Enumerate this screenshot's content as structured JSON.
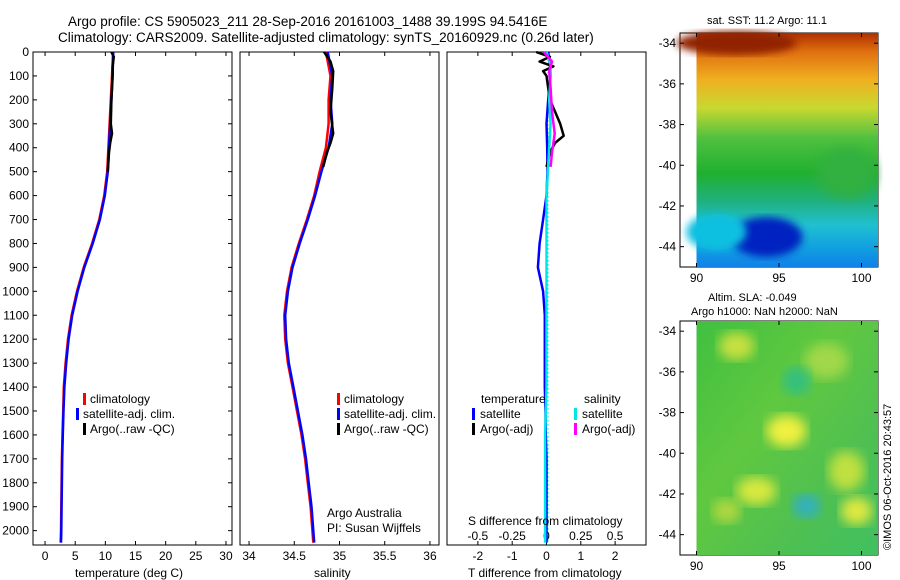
{
  "header": {
    "title_line1": "Argo profile: CS 5905023_211 28-Sep-2016 20161003_1488 39.199S 94.5416E",
    "title_line2": "Climatology: CARS2009. Satellite-adjusted climatology: synTS_20160929.nc (0.26d later)"
  },
  "credits": {
    "argo_australia": "Argo Australia",
    "pi": "PI: Susan Wijffels",
    "imos": "©IMOS 06-Oct-2016 20:43:57"
  },
  "colors": {
    "climatology": "#ff0000",
    "satellite": "#0000ff",
    "argo": "#000000",
    "salinity_satellite": "#00e5e5",
    "salinity_argo": "#ff00ff"
  },
  "depth_ticks": [
    "0",
    "100",
    "200",
    "300",
    "400",
    "500",
    "600",
    "700",
    "800",
    "900",
    "1000",
    "1100",
    "1200",
    "1300",
    "1400",
    "1500",
    "1600",
    "1700",
    "1800",
    "1900",
    "2000"
  ],
  "chart_data": [
    {
      "type": "line",
      "id": "temperature",
      "xlabel": "temperature (deg C)",
      "xlim": [
        -2,
        31
      ],
      "xticks": [
        0,
        5,
        10,
        15,
        20,
        25,
        30
      ],
      "ylim": [
        0,
        2060
      ],
      "y_inverted": true,
      "legend": [
        "climatology",
        "satellite-adj. clim.",
        "Argo(..raw -QC)"
      ],
      "legend_position": "lower-right",
      "series": [
        {
          "name": "climatology",
          "depth": [
            0,
            100,
            200,
            300,
            400,
            500,
            600,
            700,
            800,
            900,
            1000,
            1100,
            1200,
            1300,
            1400,
            1500,
            1600,
            1700,
            1800,
            1900,
            2000,
            2050
          ],
          "values": [
            11.3,
            11.1,
            10.9,
            10.7,
            10.5,
            10.3,
            9.8,
            9.0,
            7.8,
            6.4,
            5.3,
            4.4,
            3.8,
            3.4,
            3.1,
            3.0,
            2.9,
            2.8,
            2.75,
            2.7,
            2.65,
            2.6
          ]
        },
        {
          "name": "satellite-adj. clim.",
          "depth": [
            0,
            100,
            200,
            300,
            400,
            500,
            600,
            700,
            800,
            900,
            1000,
            1100,
            1200,
            1300,
            1400,
            1500,
            1600,
            1700,
            1800,
            1900,
            2000,
            2050
          ],
          "values": [
            11.3,
            11.2,
            11.0,
            10.8,
            10.6,
            10.4,
            9.9,
            9.1,
            7.9,
            6.5,
            5.4,
            4.5,
            3.9,
            3.5,
            3.2,
            3.05,
            2.95,
            2.85,
            2.8,
            2.75,
            2.7,
            2.65
          ]
        },
        {
          "name": "Argo(..raw -QC)",
          "depth": [
            0,
            20,
            60,
            100,
            200,
            300,
            340,
            380,
            420,
            500
          ],
          "values": [
            11.0,
            11.4,
            11.2,
            11.2,
            11.0,
            10.9,
            11.1,
            10.8,
            10.6,
            10.4
          ]
        }
      ]
    },
    {
      "type": "line",
      "id": "salinity",
      "xlabel": "salinity",
      "xlim": [
        33.9,
        36.1
      ],
      "xticks": [
        34,
        34.5,
        35,
        35.5,
        36
      ],
      "ylim": [
        0,
        2060
      ],
      "y_inverted": true,
      "legend": [
        "climatology",
        "satellite-adj. clim.",
        "Argo(..raw -QC)"
      ],
      "legend_position": "lower-right",
      "series": [
        {
          "name": "climatology",
          "depth": [
            0,
            100,
            200,
            300,
            400,
            500,
            600,
            700,
            800,
            900,
            1000,
            1100,
            1200,
            1300,
            1400,
            1500,
            1600,
            1700,
            1800,
            1900,
            2000,
            2050
          ],
          "values": [
            34.85,
            34.9,
            34.88,
            34.88,
            34.85,
            34.78,
            34.72,
            34.64,
            34.55,
            34.47,
            34.42,
            34.39,
            34.4,
            34.43,
            34.48,
            34.53,
            34.58,
            34.62,
            34.65,
            34.68,
            34.7,
            34.71
          ]
        },
        {
          "name": "satellite-adj. clim.",
          "depth": [
            0,
            100,
            200,
            300,
            400,
            500,
            600,
            700,
            800,
            900,
            1000,
            1100,
            1200,
            1300,
            1400,
            1500,
            1600,
            1700,
            1800,
            1900,
            2000,
            2050
          ],
          "values": [
            34.87,
            34.92,
            34.9,
            34.92,
            34.88,
            34.8,
            34.73,
            34.65,
            34.56,
            34.48,
            34.43,
            34.4,
            34.41,
            34.44,
            34.49,
            34.54,
            34.59,
            34.63,
            34.66,
            34.69,
            34.71,
            34.72
          ]
        },
        {
          "name": "Argo(..raw -QC)",
          "depth": [
            0,
            40,
            80,
            150,
            250,
            340,
            380,
            420,
            480
          ],
          "values": [
            34.83,
            34.9,
            34.93,
            34.92,
            34.9,
            34.93,
            34.9,
            34.86,
            34.82
          ]
        }
      ]
    },
    {
      "type": "line",
      "id": "difference",
      "xlabel_top": "S difference from climatology",
      "xlabel": "T difference from climatology",
      "xlim": [
        -2.9,
        2.9
      ],
      "xticks": [
        -2,
        -1,
        0,
        1,
        2
      ],
      "xticks_salinity": [
        "-0.5",
        "-0.25",
        "0",
        "0.25",
        "0.5"
      ],
      "xticks_salinity_values": [
        -0.5,
        -0.25,
        0,
        0.25,
        0.5
      ],
      "ylim": [
        0,
        2060
      ],
      "y_inverted": true,
      "legend_titles": [
        "temperature",
        "salinity"
      ],
      "legend": [
        "satellite",
        "Argo(-adj)",
        "satellite",
        "Argo(-adj)"
      ],
      "series": [
        {
          "name": "temperature satellite",
          "depth": [
            0,
            50,
            100,
            200,
            300,
            400,
            500,
            600,
            700,
            800,
            900,
            1000,
            1100,
            1200,
            1300,
            1400,
            1500,
            1600,
            1700,
            1800,
            1900,
            2000,
            2050
          ],
          "values": [
            0.05,
            0.1,
            0.12,
            0.05,
            0.0,
            0.02,
            0.03,
            0.0,
            -0.1,
            -0.2,
            -0.25,
            -0.1,
            -0.05,
            -0.05,
            -0.05,
            -0.05,
            -0.03,
            -0.02,
            0.0,
            0.0,
            0.0,
            0.0,
            0.0
          ]
        },
        {
          "name": "temperature Argo(-adj)",
          "depth": [
            0,
            20,
            40,
            60,
            80,
            100,
            150,
            200,
            250,
            300,
            350,
            380,
            420,
            480
          ],
          "values": [
            -0.3,
            0.1,
            -0.2,
            0.2,
            -0.1,
            0.0,
            0.05,
            0.1,
            0.25,
            0.4,
            0.5,
            0.25,
            0.1,
            0.0
          ]
        },
        {
          "name": "salinity satellite",
          "depth": [
            0,
            50,
            100,
            200,
            300,
            400,
            500,
            600,
            800,
            1000,
            1200,
            1400,
            1600,
            1800,
            2000,
            2050
          ],
          "values": [
            0.0,
            0.03,
            0.03,
            0.02,
            0.03,
            0.02,
            0.01,
            0.0,
            0.0,
            0.0,
            0.0,
            0.0,
            -0.01,
            -0.01,
            -0.01,
            -0.01
          ]
        },
        {
          "name": "salinity Argo(-adj)",
          "depth": [
            0,
            40,
            80,
            150,
            250,
            340,
            380,
            420,
            480
          ],
          "values": [
            -0.02,
            0.04,
            0.02,
            0.03,
            0.04,
            0.06,
            0.05,
            0.04,
            0.03
          ]
        }
      ]
    },
    {
      "type": "heatmap",
      "id": "sst_map",
      "title": "sat. SST: 11.2 Argo: 11.1",
      "xlim": [
        89,
        101
      ],
      "ylim": [
        -45,
        -33.5
      ],
      "xticks": [
        90,
        95,
        100
      ],
      "yticks": [
        -34,
        -36,
        -38,
        -40,
        -42,
        -44
      ],
      "data_extent_x": [
        90,
        101
      ],
      "data_extent_y": [
        -45,
        -33.5
      ],
      "colormap": "jet",
      "gradient": "warm in north, cool in south"
    },
    {
      "type": "heatmap",
      "id": "sla_map",
      "title": "Altim. SLA: -0.049",
      "subtitle": "Argo h1000: NaN h2000: NaN",
      "xlim": [
        89,
        101
      ],
      "ylim": [
        -45,
        -33.5
      ],
      "xticks": [
        90,
        95,
        100
      ],
      "yticks": [
        -34,
        -36,
        -38,
        -40,
        -42,
        -44
      ],
      "data_extent_x": [
        90,
        101
      ],
      "data_extent_y": [
        -45,
        -33.5
      ],
      "colormap": "jet",
      "gradient": "mostly green with yellow and cyan patches"
    }
  ]
}
